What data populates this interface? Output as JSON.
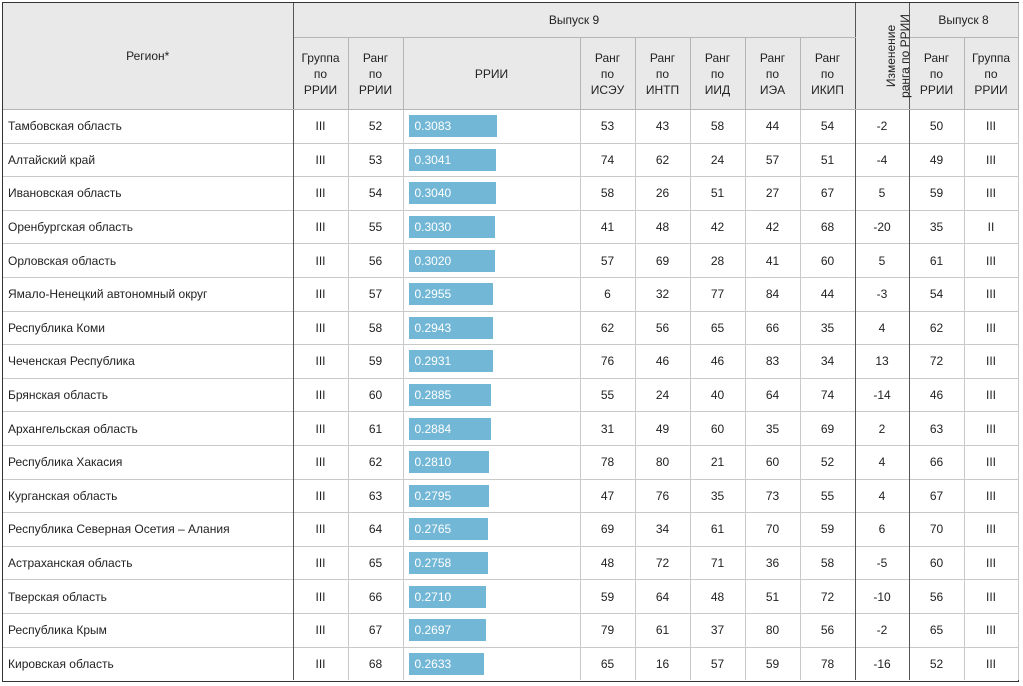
{
  "header": {
    "region": "Регион*",
    "release9": "Выпуск 9",
    "release8": "Выпуск 8",
    "group_rrii": [
      "Группа",
      "по",
      "РРИИ"
    ],
    "rank_rrii": [
      "Ранг",
      "по",
      "РРИИ"
    ],
    "rrii": "РРИИ",
    "rank_isezu": [
      "Ранг",
      "по",
      "ИСЭУ"
    ],
    "rank_intp": [
      "Ранг",
      "по",
      "ИНТП"
    ],
    "rank_iid": [
      "Ранг",
      "по",
      "ИИД"
    ],
    "rank_iea": [
      "Ранг",
      "по",
      "ИЭА"
    ],
    "rank_ikip": [
      "Ранг",
      "по",
      "ИКИП"
    ],
    "change": [
      "Изменение",
      "ранга по РРИИ"
    ],
    "rank8": [
      "Ранг",
      "по",
      "РРИИ"
    ],
    "group8": [
      "Группа",
      "по",
      "РРИИ"
    ]
  },
  "colors": {
    "bar": "#72b7d6",
    "header_bg": "#e9e9e9"
  },
  "rows": [
    {
      "region": "Тамбовская область",
      "group": "III",
      "rank": "52",
      "rrii": "0.3083",
      "isezu": "53",
      "intp": "43",
      "iid": "58",
      "iea": "44",
      "ikip": "54",
      "change": "-2",
      "rank8": "50",
      "group8": "III"
    },
    {
      "region": "Алтайский край",
      "group": "III",
      "rank": "53",
      "rrii": "0.3041",
      "isezu": "74",
      "intp": "62",
      "iid": "24",
      "iea": "57",
      "ikip": "51",
      "change": "-4",
      "rank8": "49",
      "group8": "III"
    },
    {
      "region": "Ивановская область",
      "group": "III",
      "rank": "54",
      "rrii": "0.3040",
      "isezu": "58",
      "intp": "26",
      "iid": "51",
      "iea": "27",
      "ikip": "67",
      "change": "5",
      "rank8": "59",
      "group8": "III"
    },
    {
      "region": "Оренбургская область",
      "group": "III",
      "rank": "55",
      "rrii": "0.3030",
      "isezu": "41",
      "intp": "48",
      "iid": "42",
      "iea": "42",
      "ikip": "68",
      "change": "-20",
      "rank8": "35",
      "group8": "II"
    },
    {
      "region": "Орловская область",
      "group": "III",
      "rank": "56",
      "rrii": "0.3020",
      "isezu": "57",
      "intp": "69",
      "iid": "28",
      "iea": "41",
      "ikip": "60",
      "change": "5",
      "rank8": "61",
      "group8": "III"
    },
    {
      "region": "Ямало-Ненецкий автономный округ",
      "group": "III",
      "rank": "57",
      "rrii": "0.2955",
      "isezu": "6",
      "intp": "32",
      "iid": "77",
      "iea": "84",
      "ikip": "44",
      "change": "-3",
      "rank8": "54",
      "group8": "III"
    },
    {
      "region": "Республика Коми",
      "group": "III",
      "rank": "58",
      "rrii": "0.2943",
      "isezu": "62",
      "intp": "56",
      "iid": "65",
      "iea": "66",
      "ikip": "35",
      "change": "4",
      "rank8": "62",
      "group8": "III"
    },
    {
      "region": "Чеченская Республика",
      "group": "III",
      "rank": "59",
      "rrii": "0.2931",
      "isezu": "76",
      "intp": "46",
      "iid": "46",
      "iea": "83",
      "ikip": "34",
      "change": "13",
      "rank8": "72",
      "group8": "III"
    },
    {
      "region": "Брянская область",
      "group": "III",
      "rank": "60",
      "rrii": "0.2885",
      "isezu": "55",
      "intp": "24",
      "iid": "40",
      "iea": "64",
      "ikip": "74",
      "change": "-14",
      "rank8": "46",
      "group8": "III"
    },
    {
      "region": "Архангельская область",
      "group": "III",
      "rank": "61",
      "rrii": "0.2884",
      "isezu": "31",
      "intp": "49",
      "iid": "60",
      "iea": "35",
      "ikip": "69",
      "change": "2",
      "rank8": "63",
      "group8": "III"
    },
    {
      "region": "Республика Хакасия",
      "group": "III",
      "rank": "62",
      "rrii": "0.2810",
      "isezu": "78",
      "intp": "80",
      "iid": "21",
      "iea": "60",
      "ikip": "52",
      "change": "4",
      "rank8": "66",
      "group8": "III"
    },
    {
      "region": "Курганская область",
      "group": "III",
      "rank": "63",
      "rrii": "0.2795",
      "isezu": "47",
      "intp": "76",
      "iid": "35",
      "iea": "73",
      "ikip": "55",
      "change": "4",
      "rank8": "67",
      "group8": "III"
    },
    {
      "region": "Республика Северная Осетия – Алания",
      "group": "III",
      "rank": "64",
      "rrii": "0.2765",
      "isezu": "69",
      "intp": "34",
      "iid": "61",
      "iea": "70",
      "ikip": "59",
      "change": "6",
      "rank8": "70",
      "group8": "III"
    },
    {
      "region": "Астраханская область",
      "group": "III",
      "rank": "65",
      "rrii": "0.2758",
      "isezu": "48",
      "intp": "72",
      "iid": "71",
      "iea": "36",
      "ikip": "58",
      "change": "-5",
      "rank8": "60",
      "group8": "III"
    },
    {
      "region": "Тверская область",
      "group": "III",
      "rank": "66",
      "rrii": "0.2710",
      "isezu": "59",
      "intp": "64",
      "iid": "48",
      "iea": "51",
      "ikip": "72",
      "change": "-10",
      "rank8": "56",
      "group8": "III"
    },
    {
      "region": "Республика Крым",
      "group": "III",
      "rank": "67",
      "rrii": "0.2697",
      "isezu": "79",
      "intp": "61",
      "iid": "37",
      "iea": "80",
      "ikip": "56",
      "change": "-2",
      "rank8": "65",
      "group8": "III"
    },
    {
      "region": "Кировская область",
      "group": "III",
      "rank": "68",
      "rrii": "0.2633",
      "isezu": "65",
      "intp": "16",
      "iid": "57",
      "iea": "59",
      "ikip": "78",
      "change": "-16",
      "rank8": "52",
      "group8": "III"
    }
  ]
}
